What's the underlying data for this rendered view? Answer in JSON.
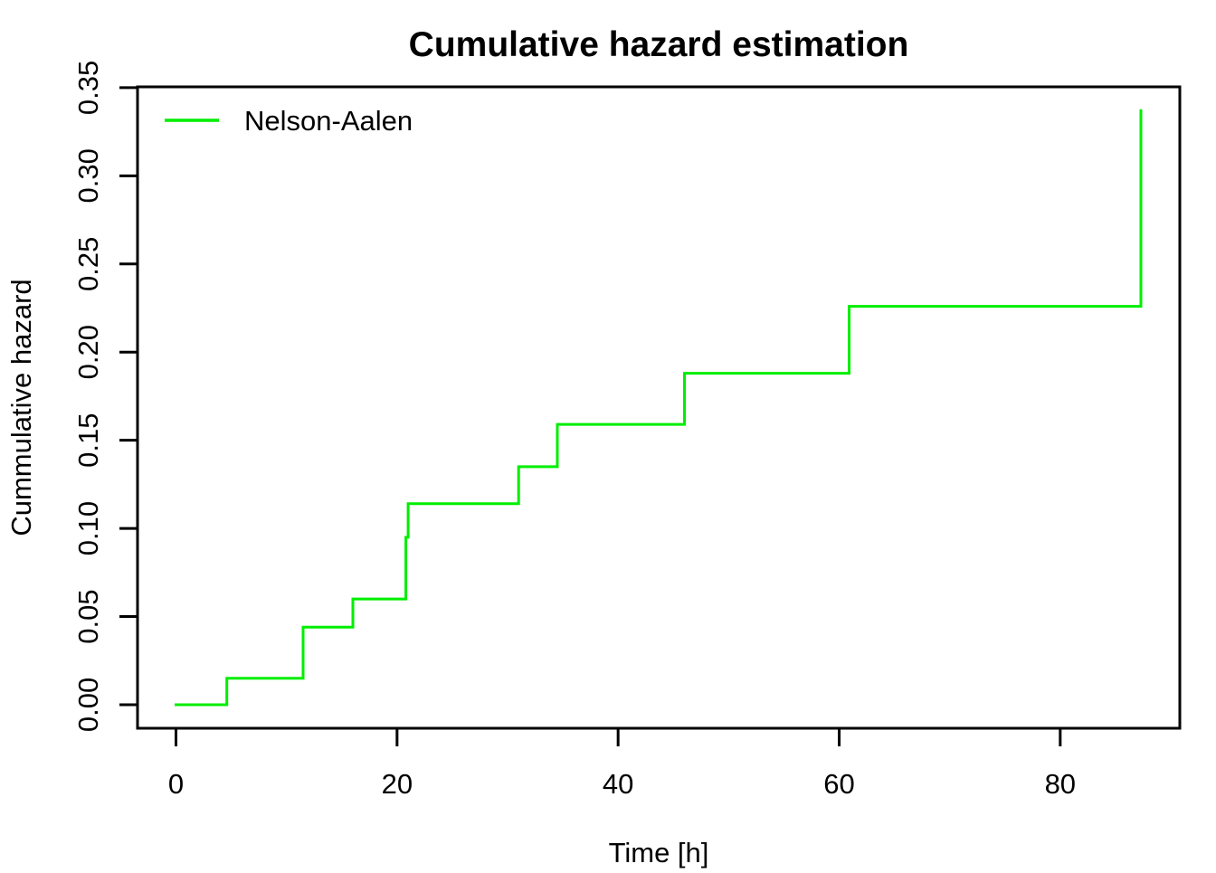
{
  "chart_data": {
    "type": "line",
    "subtype": "step-post",
    "title": "Cumulative hazard estimation",
    "xlabel": "Time [h]",
    "ylabel": "Cummulative hazard",
    "legend": {
      "position": "top-left",
      "entries": [
        {
          "label": "Nelson-Aalen",
          "color": "#00EE00"
        }
      ]
    },
    "series": [
      {
        "name": "Nelson-Aalen",
        "color": "#00EE00",
        "points": [
          [
            0,
            0.0
          ],
          [
            4.6,
            0.015
          ],
          [
            11.5,
            0.044
          ],
          [
            16.0,
            0.06
          ],
          [
            20.8,
            0.095
          ],
          [
            21.0,
            0.114
          ],
          [
            31.0,
            0.135
          ],
          [
            34.5,
            0.159
          ],
          [
            46.0,
            0.188
          ],
          [
            60.9,
            0.226
          ],
          [
            87.3,
            0.337
          ]
        ]
      }
    ],
    "x_ticks": [
      {
        "value": 0,
        "label": "0"
      },
      {
        "value": 20,
        "label": "20"
      },
      {
        "value": 40,
        "label": "40"
      },
      {
        "value": 60,
        "label": "60"
      },
      {
        "value": 80,
        "label": "80"
      }
    ],
    "y_ticks": [
      {
        "value": 0.0,
        "label": "0.00"
      },
      {
        "value": 0.05,
        "label": "0.05"
      },
      {
        "value": 0.1,
        "label": "0.10"
      },
      {
        "value": 0.15,
        "label": "0.15"
      },
      {
        "value": 0.2,
        "label": "0.20"
      },
      {
        "value": 0.25,
        "label": "0.25"
      },
      {
        "value": 0.3,
        "label": "0.30"
      },
      {
        "value": 0.35,
        "label": "0.35"
      }
    ],
    "xlim": [
      -3.48,
      90.82
    ],
    "ylim": [
      -0.01335,
      0.35047
    ],
    "grid": false,
    "axis_color": "#000000",
    "background_color": "#ffffff"
  }
}
